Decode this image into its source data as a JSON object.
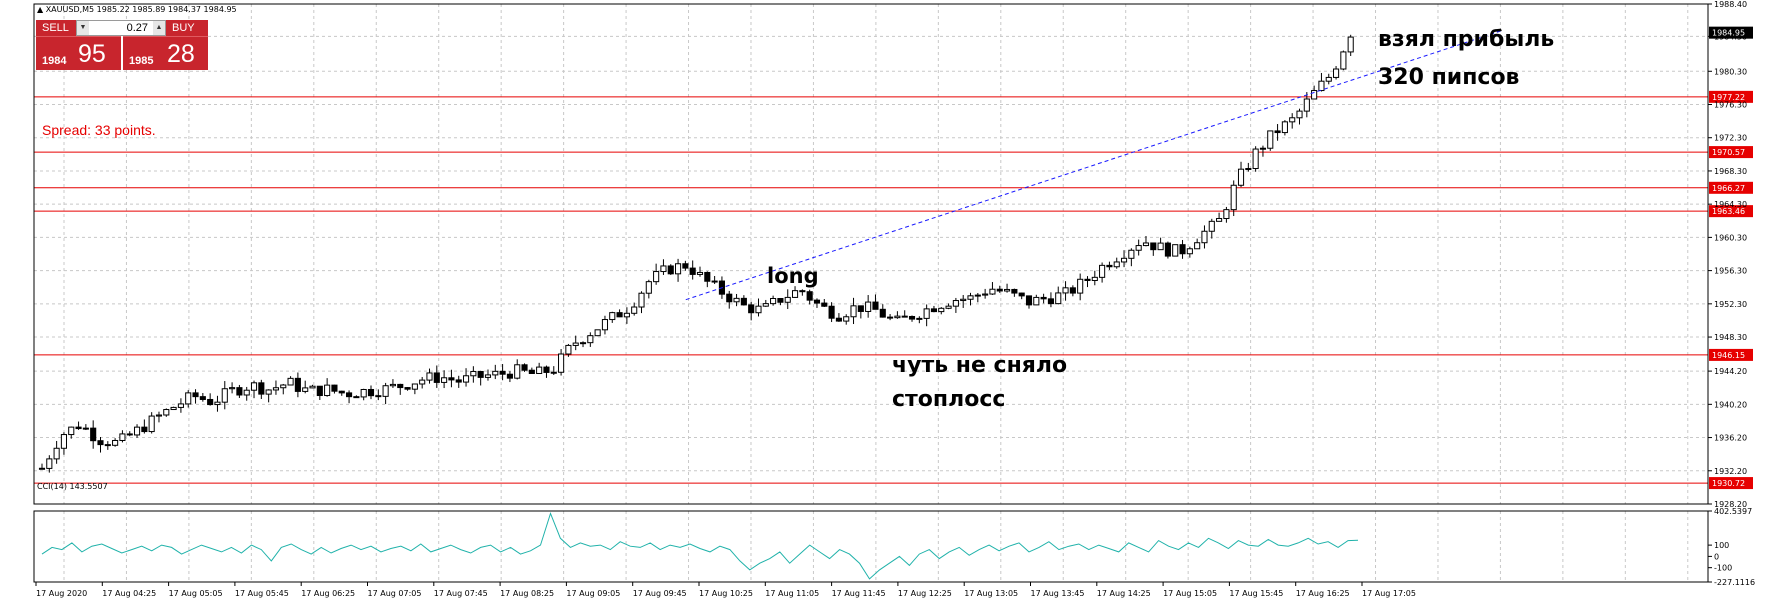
{
  "symbol_header": "▲ XAUUSD,M5  1985.22 1985.89 1984.37 1984.95",
  "trade_panel": {
    "sell_label": "SELL",
    "buy_label": "BUY",
    "lot_value": "0.27",
    "sell_price_big": "1984",
    "sell_price_small": "95",
    "buy_price_big": "1985",
    "buy_price_small": "28"
  },
  "spread_text": "Spread: 33 points.",
  "annotations": {
    "long": "long",
    "profit_line1": "взял прибыль",
    "profit_line2": "320 пипсов",
    "stop_line1": "чуть не сняло",
    "stop_line2": "стоплосс"
  },
  "colors": {
    "level_line": "#e60000",
    "price_tag_bg": "#e60000",
    "trend_line": "#1a1aff",
    "cci_line": "#20b2aa",
    "grid": "#c8c8c8",
    "current_price_bg": "#000000"
  },
  "indicator": {
    "label": "CCI(14) 143.5507",
    "axis_ticks": [
      "402.5397",
      "100",
      "0",
      "-100",
      "-227.1116"
    ]
  },
  "chart_data": {
    "type": "candlestick",
    "symbol": "XAUUSD",
    "timeframe": "M5",
    "ylim": [
      1928.2,
      1988.4
    ],
    "y_ticks": [
      1988.4,
      1984.5,
      1980.3,
      1976.3,
      1972.3,
      1968.3,
      1964.3,
      1960.3,
      1956.3,
      1952.3,
      1948.3,
      1944.2,
      1940.2,
      1936.2,
      1932.2,
      1928.2
    ],
    "x_ticks": [
      "17 Aug 2020",
      "17 Aug 04:25",
      "17 Aug 05:05",
      "17 Aug 05:45",
      "17 Aug 06:25",
      "17 Aug 07:05",
      "17 Aug 07:45",
      "17 Aug 08:25",
      "17 Aug 09:05",
      "17 Aug 09:45",
      "17 Aug 10:25",
      "17 Aug 11:05",
      "17 Aug 11:45",
      "17 Aug 12:25",
      "17 Aug 13:05",
      "17 Aug 13:45",
      "17 Aug 14:25",
      "17 Aug 15:05",
      "17 Aug 15:45",
      "17 Aug 16:25",
      "17 Aug 17:05"
    ],
    "current_price": "1984.95",
    "levels": [
      {
        "value": 1977.22,
        "label": "1977.22"
      },
      {
        "value": 1970.57,
        "label": "1970.57"
      },
      {
        "value": 1966.27,
        "label": "1966.27"
      },
      {
        "value": 1963.46,
        "label": "1963.46"
      },
      {
        "value": 1946.15,
        "label": "1946.15"
      },
      {
        "value": 1930.72,
        "label": "1930.72"
      }
    ],
    "close_path": [
      1932.5,
      1936.5,
      1937.8,
      1936.0,
      1935.5,
      1937.0,
      1938.5,
      1940.0,
      1941.2,
      1940.5,
      1941.8,
      1942.5,
      1942.0,
      1942.8,
      1941.8,
      1942.0,
      1941.5,
      1941.8,
      1942.0,
      1942.5,
      1943.2,
      1943.5,
      1943.0,
      1943.5,
      1943.8,
      1944.2,
      1943.8,
      1944.5,
      1947.5,
      1949.0,
      1950.5,
      1952.0,
      1955.0,
      1956.5,
      1957.0,
      1955.0,
      1953.5,
      1952.0,
      1951.5,
      1953.0,
      1954.0,
      1952.0,
      1951.0,
      1952.0,
      1951.5,
      1950.0,
      1951.0,
      1952.0,
      1952.8,
      1953.0,
      1954.2,
      1953.5,
      1952.5,
      1953.0,
      1953.5,
      1955.0,
      1957.0,
      1958.5,
      1960.0,
      1959.0,
      1958.5,
      1960.5,
      1962.0,
      1967.0,
      1970.5,
      1973.0,
      1974.5,
      1977.5,
      1980.0,
      1984.95
    ],
    "trend_line": {
      "from": [
        0.436,
        1952.8
      ],
      "to": [
        0.982,
        1985.2
      ]
    },
    "cci": {
      "ylim": [
        -227.1116,
        402.5397
      ],
      "values": [
        20,
        80,
        60,
        120,
        40,
        90,
        110,
        70,
        30,
        60,
        90,
        50,
        100,
        80,
        20,
        60,
        100,
        70,
        40,
        80,
        30,
        100,
        60,
        -40,
        80,
        110,
        60,
        20,
        80,
        30,
        70,
        100,
        60,
        90,
        40,
        70,
        90,
        50,
        110,
        40,
        70,
        100,
        60,
        30,
        80,
        100,
        40,
        80,
        20,
        50,
        100,
        380,
        160,
        80,
        120,
        90,
        100,
        60,
        130,
        90,
        80,
        120,
        60,
        100,
        80,
        110,
        70,
        40,
        90,
        60,
        -40,
        -120,
        -60,
        -20,
        40,
        -60,
        20,
        100,
        40,
        -20,
        60,
        20,
        -60,
        -200,
        -120,
        -60,
        0,
        -80,
        20,
        60,
        -20,
        40,
        80,
        10,
        60,
        100,
        50,
        90,
        120,
        40,
        80,
        130,
        60,
        90,
        110,
        60,
        100,
        70,
        40,
        120,
        80,
        40,
        140,
        90,
        60,
        120,
        80,
        160,
        120,
        70,
        140,
        100,
        90,
        150,
        100,
        90,
        120,
        160,
        110,
        130,
        80,
        140,
        143.55
      ]
    }
  }
}
